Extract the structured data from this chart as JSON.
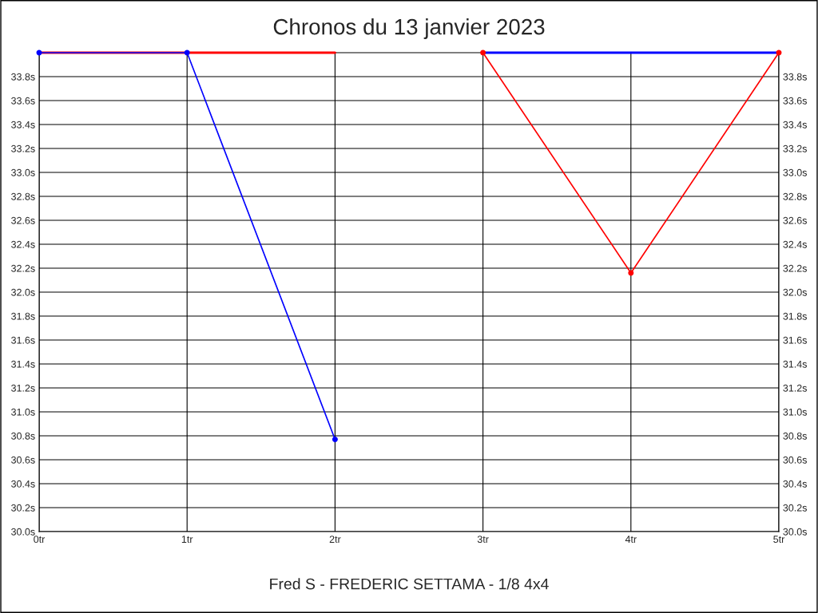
{
  "chart_data": {
    "type": "line",
    "title": "Chronos du 13 janvier 2023",
    "xlabel": "Fred S - FREDERIC SETTAMA - 1/8 4x4",
    "xlim": [
      0,
      5
    ],
    "xticks": [
      {
        "value": 0,
        "label": "0tr"
      },
      {
        "value": 1,
        "label": "1tr"
      },
      {
        "value": 2,
        "label": "2tr"
      },
      {
        "value": 3,
        "label": "3tr"
      },
      {
        "value": 4,
        "label": "4tr"
      },
      {
        "value": 5,
        "label": "5tr"
      }
    ],
    "ylim": [
      30.0,
      34.0
    ],
    "yticks": [
      {
        "value": 30.0,
        "label": "30.0s"
      },
      {
        "value": 30.2,
        "label": "30.2s"
      },
      {
        "value": 30.4,
        "label": "30.4s"
      },
      {
        "value": 30.6,
        "label": "30.6s"
      },
      {
        "value": 30.8,
        "label": "30.8s"
      },
      {
        "value": 31.0,
        "label": "31.0s"
      },
      {
        "value": 31.2,
        "label": "31.2s"
      },
      {
        "value": 31.4,
        "label": "31.4s"
      },
      {
        "value": 31.6,
        "label": "31.6s"
      },
      {
        "value": 31.8,
        "label": "31.8s"
      },
      {
        "value": 32.0,
        "label": "32.0s"
      },
      {
        "value": 32.2,
        "label": "32.2s"
      },
      {
        "value": 32.4,
        "label": "32.4s"
      },
      {
        "value": 32.6,
        "label": "32.6s"
      },
      {
        "value": 32.8,
        "label": "32.8s"
      },
      {
        "value": 33.0,
        "label": "33.0s"
      },
      {
        "value": 33.2,
        "label": "33.2s"
      },
      {
        "value": 33.4,
        "label": "33.4s"
      },
      {
        "value": 33.6,
        "label": "33.6s"
      },
      {
        "value": 33.8,
        "label": "33.8s"
      },
      {
        "value": 34.0,
        "label": null
      }
    ],
    "y2lim": [
      30.0,
      34.0
    ],
    "y2ticks": [
      {
        "value": 30.0,
        "label": "30.0s"
      },
      {
        "value": 30.2,
        "label": "30.2s"
      },
      {
        "value": 30.4,
        "label": "30.4s"
      },
      {
        "value": 30.6,
        "label": "30.6s"
      },
      {
        "value": 30.8,
        "label": "30.8s"
      },
      {
        "value": 31.0,
        "label": "31.0s"
      },
      {
        "value": 31.2,
        "label": "31.2s"
      },
      {
        "value": 31.4,
        "label": "31.4s"
      },
      {
        "value": 31.6,
        "label": "31.6s"
      },
      {
        "value": 31.8,
        "label": "31.8s"
      },
      {
        "value": 32.0,
        "label": "32.0s"
      },
      {
        "value": 32.2,
        "label": "32.2s"
      },
      {
        "value": 32.4,
        "label": "32.4s"
      },
      {
        "value": 32.6,
        "label": "32.6s"
      },
      {
        "value": 32.8,
        "label": "32.8s"
      },
      {
        "value": 33.0,
        "label": "33.0s"
      },
      {
        "value": 33.2,
        "label": "33.2s"
      },
      {
        "value": 33.4,
        "label": "33.4s"
      },
      {
        "value": 33.6,
        "label": "33.6s"
      },
      {
        "value": 33.8,
        "label": "33.8s"
      },
      {
        "value": 34.0,
        "label": null
      }
    ],
    "grid": true,
    "series": [
      {
        "color": "#ff0000",
        "x": [
          0,
          1,
          2
        ],
        "values": [
          34.0,
          34.0,
          34.0
        ],
        "marker": "none"
      },
      {
        "color": "#ff0000",
        "x": [
          3,
          4,
          5
        ],
        "values": [
          34.0,
          32.16,
          34.0
        ],
        "marker": "circle"
      },
      {
        "color": "#0000ff",
        "x": [
          0,
          1,
          2
        ],
        "values": [
          34.0,
          34.0,
          30.77
        ],
        "marker": "circle"
      },
      {
        "color": "#0000ff",
        "x": [
          3,
          4,
          5
        ],
        "values": [
          34.0,
          34.0,
          34.0
        ],
        "marker": "none"
      }
    ]
  }
}
